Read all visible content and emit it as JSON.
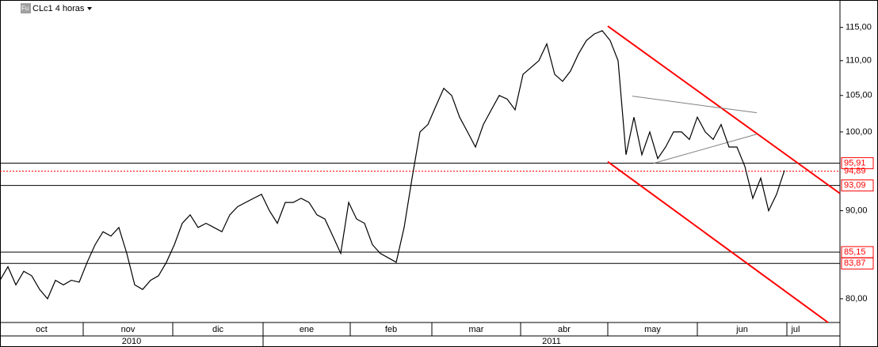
{
  "chart_data": {
    "type": "line",
    "title": "CLc1 4 horas",
    "icon_label": "Fu",
    "log_scale": true,
    "xlim": [
      0,
      212
    ],
    "ylim": [
      77.5,
      119.3
    ],
    "yticks": [
      {
        "value": 80,
        "label": "80,00"
      },
      {
        "value": 90,
        "label": "90,00"
      },
      {
        "value": 100,
        "label": "100,00"
      },
      {
        "value": 105,
        "label": "105,00"
      },
      {
        "value": 110,
        "label": "110,00"
      },
      {
        "value": 115,
        "label": "115,00"
      }
    ],
    "months": [
      {
        "label": "oct",
        "start": 0,
        "end": 21
      },
      {
        "label": "nov",
        "start": 21,
        "end": 43.6
      },
      {
        "label": "dic",
        "start": 43.6,
        "end": 66.4
      },
      {
        "label": "ene",
        "start": 66.4,
        "end": 88.4
      },
      {
        "label": "feb",
        "start": 88.4,
        "end": 109
      },
      {
        "label": "mar",
        "start": 109,
        "end": 131.4
      },
      {
        "label": "abr",
        "start": 131.4,
        "end": 153.4
      },
      {
        "label": "may",
        "start": 153.4,
        "end": 176
      },
      {
        "label": "jun",
        "start": 176,
        "end": 198.6
      },
      {
        "label": "jul",
        "start": 198.6,
        "end": 203
      }
    ],
    "years": [
      {
        "label": "2010",
        "start": 0,
        "end": 66.4
      },
      {
        "label": "2011",
        "start": 66.4,
        "end": 212
      }
    ],
    "series": [
      {
        "name": "CLc1",
        "color": "#000000",
        "x": [
          0,
          2,
          4,
          6,
          8,
          10,
          12,
          14,
          16,
          18,
          20,
          22,
          24,
          26,
          28,
          30,
          32,
          34,
          36,
          38,
          40,
          42,
          44,
          46,
          48,
          50,
          52,
          54,
          56,
          58,
          60,
          62,
          64,
          66,
          68,
          70,
          72,
          74,
          76,
          78,
          80,
          82,
          84,
          86,
          88,
          90,
          92,
          94,
          96,
          98,
          100,
          102,
          104,
          106,
          108,
          110,
          112,
          114,
          116,
          118,
          120,
          122,
          124,
          126,
          128,
          130,
          132,
          134,
          136,
          138,
          140,
          142,
          144,
          146,
          148,
          150,
          152,
          154,
          156,
          158,
          160,
          162,
          164,
          166,
          168,
          170,
          172,
          174,
          176,
          178,
          180,
          182,
          184,
          186,
          188,
          190,
          192,
          194,
          196,
          198
        ],
        "values": [
          82.0,
          83.5,
          81.5,
          83,
          82.5,
          81,
          80,
          82,
          81.5,
          82,
          81.8,
          84,
          86,
          87.5,
          87,
          88,
          85,
          81.5,
          81,
          82,
          82.5,
          84,
          86,
          88.5,
          89.5,
          88,
          88.5,
          88,
          87.5,
          89.5,
          90.5,
          91,
          91.5,
          92,
          90,
          88.5,
          91,
          91,
          91.5,
          91,
          89.5,
          89,
          87,
          85,
          91,
          89,
          88.5,
          86,
          85,
          84.5,
          84,
          88,
          94,
          100,
          101,
          103.5,
          106,
          105,
          102,
          100,
          98,
          101,
          103,
          105,
          104.5,
          103,
          108,
          109,
          110,
          112.5,
          108,
          107,
          108.5,
          111,
          113,
          114,
          114.5,
          113,
          110,
          97,
          102,
          97,
          100,
          96.5,
          98,
          100,
          100,
          99,
          102,
          100,
          99,
          101,
          98,
          98,
          95.5,
          91.5,
          94,
          90,
          92,
          95
        ]
      }
    ],
    "levels": [
      {
        "value": 95.91,
        "label": "95,91",
        "color": "#000000"
      },
      {
        "value": 94.89,
        "label": "94,89",
        "color": "#ff0000",
        "dotted": true
      },
      {
        "value": 93.09,
        "label": "93,09",
        "color": "#000000"
      },
      {
        "value": 85.15,
        "label": "85,15",
        "color": "#000000"
      },
      {
        "value": 83.87,
        "label": "83,87",
        "color": "#000000"
      }
    ],
    "trendlines": [
      {
        "color": "#ff0000",
        "x": [
          153.4,
          212
        ],
        "y": [
          115.2,
          92.1
        ]
      },
      {
        "color": "#ff0000",
        "x": [
          153.4,
          209
        ],
        "y": [
          96.1,
          77.5
        ]
      },
      {
        "color": "#808080",
        "x": [
          159.6,
          191
        ],
        "y": [
          104.9,
          102.6
        ]
      },
      {
        "color": "#808080",
        "x": [
          165,
          191
        ],
        "y": [
          95.9,
          99.7
        ]
      }
    ]
  }
}
